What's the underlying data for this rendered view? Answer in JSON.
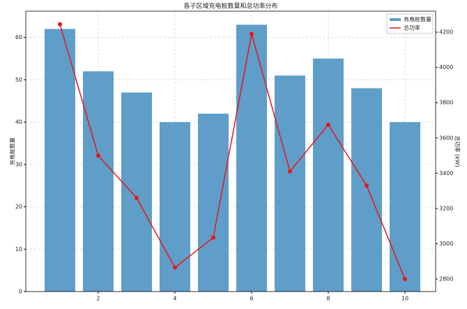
{
  "chart_data": {
    "type": "bar_line",
    "title": "各子区域充电桩数量和总功率分布",
    "ylabel": "充电桩数量",
    "y2label": "总功率 (kW)",
    "x": [
      1,
      2,
      3,
      4,
      5,
      6,
      7,
      8,
      9,
      10
    ],
    "xlim": [
      0.11,
      10.8
    ],
    "xticks": [
      2,
      4,
      6,
      8,
      10
    ],
    "ylim": [
      0,
      66.2
    ],
    "yticks": [
      0,
      10,
      20,
      30,
      40,
      50,
      60
    ],
    "y2lim": [
      2729,
      4319
    ],
    "y2ticks": [
      2800,
      3000,
      3200,
      3400,
      3600,
      3800,
      4000,
      4200
    ],
    "grid": true,
    "legend": "upper right",
    "series": [
      {
        "name": "充电桩数量",
        "color": "#5f9ec9",
        "values": [
          62,
          52,
          47,
          40,
          42,
          63,
          51,
          55,
          48,
          40
        ]
      },
      {
        "name": "总功率",
        "color": "#e8141a",
        "axis": "y2",
        "values": [
          4245,
          3500,
          3260,
          2865,
          3035,
          4190,
          3410,
          3675,
          3330,
          2800
        ]
      }
    ]
  }
}
